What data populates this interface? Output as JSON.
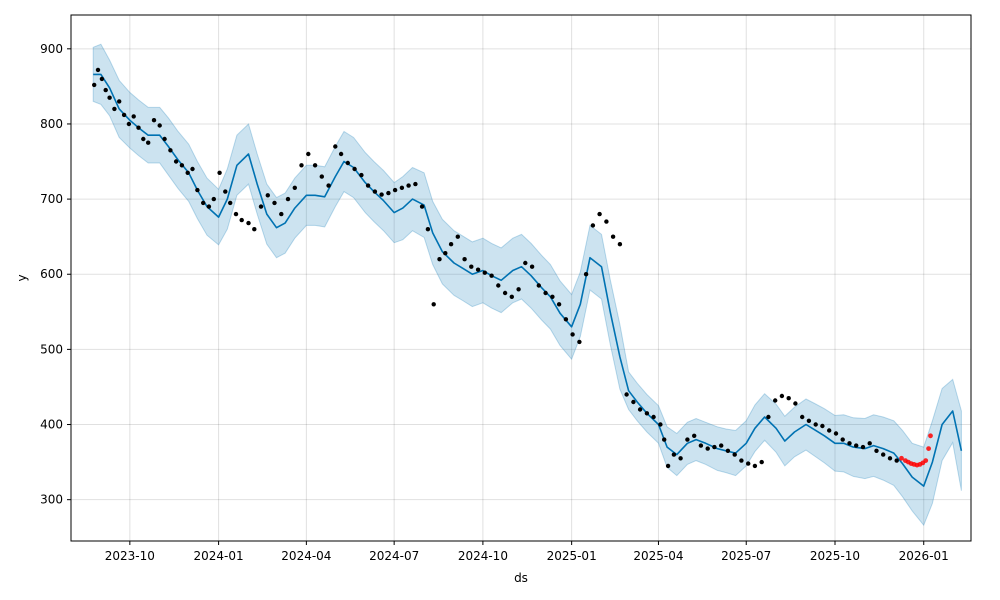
{
  "chart_data": {
    "type": "line",
    "title": "",
    "xlabel": "ds",
    "ylabel": "y",
    "x_range": [
      "2023-08-01",
      "2026-02-19"
    ],
    "ylim": [
      245,
      945
    ],
    "grid": true,
    "x_ticks": [
      "2023-10-01",
      "2024-01-01",
      "2024-04-01",
      "2024-07-01",
      "2024-10-01",
      "2025-01-01",
      "2025-04-01",
      "2025-07-01",
      "2025-10-01",
      "2026-01-01"
    ],
    "x_tick_labels": [
      "2023-10",
      "2024-01",
      "2024-04",
      "2024-07",
      "2024-10",
      "2025-01",
      "2025-04",
      "2025-07",
      "2025-10",
      "2026-01"
    ],
    "y_ticks": [
      300,
      400,
      500,
      600,
      700,
      800,
      900
    ],
    "colors": {
      "forecast_line": "#0072b2",
      "interval_fill": "#0072b2",
      "actual_points": "#000000",
      "highlight_points": "#ff0000"
    },
    "series": [
      {
        "role": "forecast",
        "x": [
          "2023-08-24",
          "2023-09-01",
          "2023-09-10",
          "2023-09-20",
          "2023-10-01",
          "2023-10-10",
          "2023-10-20",
          "2023-11-01",
          "2023-11-10",
          "2023-11-20",
          "2023-12-01",
          "2023-12-10",
          "2023-12-20",
          "2024-01-01",
          "2024-01-10",
          "2024-01-20",
          "2024-02-01",
          "2024-02-10",
          "2024-02-20",
          "2024-03-01",
          "2024-03-10",
          "2024-03-20",
          "2024-04-01",
          "2024-04-10",
          "2024-04-20",
          "2024-05-01",
          "2024-05-10",
          "2024-05-20",
          "2024-06-01",
          "2024-06-10",
          "2024-06-20",
          "2024-07-01",
          "2024-07-10",
          "2024-07-20",
          "2024-08-01",
          "2024-08-10",
          "2024-08-20",
          "2024-09-01",
          "2024-09-10",
          "2024-09-20",
          "2024-10-01",
          "2024-10-10",
          "2024-10-20",
          "2024-11-01",
          "2024-11-10",
          "2024-11-20",
          "2024-12-01",
          "2024-12-10",
          "2024-12-20",
          "2025-01-01",
          "2025-01-10",
          "2025-01-20",
          "2025-02-01",
          "2025-02-10",
          "2025-02-20",
          "2025-03-01",
          "2025-03-10",
          "2025-03-20",
          "2025-04-01",
          "2025-04-10",
          "2025-04-20",
          "2025-05-01",
          "2025-05-10",
          "2025-05-20",
          "2025-06-01",
          "2025-06-10",
          "2025-06-20",
          "2025-07-01",
          "2025-07-10",
          "2025-07-20",
          "2025-08-01",
          "2025-08-10",
          "2025-08-20",
          "2025-09-01",
          "2025-09-10",
          "2025-09-20",
          "2025-10-01",
          "2025-10-10",
          "2025-10-20",
          "2025-11-01",
          "2025-11-10",
          "2025-11-20",
          "2025-12-01",
          "2025-12-10",
          "2025-12-20",
          "2026-01-01",
          "2026-01-10",
          "2026-01-20",
          "2026-01-31",
          "2026-02-09"
        ],
        "y": [
          866,
          866,
          848,
          820,
          805,
          795,
          785,
          785,
          770,
          752,
          735,
          712,
          690,
          676,
          700,
          745,
          760,
          720,
          680,
          662,
          668,
          688,
          705,
          705,
          703,
          730,
          750,
          742,
          722,
          710,
          698,
          682,
          688,
          700,
          692,
          655,
          630,
          615,
          608,
          600,
          605,
          598,
          592,
          605,
          610,
          598,
          582,
          570,
          548,
          530,
          560,
          622,
          610,
          550,
          490,
          445,
          430,
          415,
          400,
          370,
          360,
          375,
          380,
          375,
          368,
          365,
          362,
          375,
          395,
          410,
          395,
          378,
          390,
          400,
          393,
          385,
          375,
          375,
          370,
          368,
          372,
          368,
          362,
          348,
          330,
          318,
          350,
          400,
          418,
          365
        ]
      },
      {
        "role": "interval_upper",
        "x": [
          "2023-08-24",
          "2023-09-01",
          "2023-09-10",
          "2023-09-20",
          "2023-10-01",
          "2023-10-10",
          "2023-10-20",
          "2023-11-01",
          "2023-11-10",
          "2023-11-20",
          "2023-12-01",
          "2023-12-10",
          "2023-12-20",
          "2024-01-01",
          "2024-01-10",
          "2024-01-20",
          "2024-02-01",
          "2024-02-10",
          "2024-02-20",
          "2024-03-01",
          "2024-03-10",
          "2024-03-20",
          "2024-04-01",
          "2024-04-10",
          "2024-04-20",
          "2024-05-01",
          "2024-05-10",
          "2024-05-20",
          "2024-06-01",
          "2024-06-10",
          "2024-06-20",
          "2024-07-01",
          "2024-07-10",
          "2024-07-20",
          "2024-08-01",
          "2024-08-10",
          "2024-08-20",
          "2024-09-01",
          "2024-09-10",
          "2024-09-20",
          "2024-10-01",
          "2024-10-10",
          "2024-10-20",
          "2024-11-01",
          "2024-11-10",
          "2024-11-20",
          "2024-12-01",
          "2024-12-10",
          "2024-12-20",
          "2025-01-01",
          "2025-01-10",
          "2025-01-20",
          "2025-02-01",
          "2025-02-10",
          "2025-02-20",
          "2025-03-01",
          "2025-03-10",
          "2025-03-20",
          "2025-04-01",
          "2025-04-10",
          "2025-04-20",
          "2025-05-01",
          "2025-05-10",
          "2025-05-20",
          "2025-06-01",
          "2025-06-10",
          "2025-06-20",
          "2025-07-01",
          "2025-07-10",
          "2025-07-20",
          "2025-08-01",
          "2025-08-10",
          "2025-08-20",
          "2025-09-01",
          "2025-09-10",
          "2025-09-20",
          "2025-10-01",
          "2025-10-10",
          "2025-10-20",
          "2025-11-01",
          "2025-11-10",
          "2025-11-20",
          "2025-12-01",
          "2025-12-10",
          "2025-12-20",
          "2026-01-01",
          "2026-01-10",
          "2026-01-20",
          "2026-01-31",
          "2026-02-09"
        ],
        "y": [
          902,
          906,
          885,
          858,
          842,
          832,
          822,
          822,
          808,
          790,
          773,
          750,
          728,
          713,
          740,
          785,
          800,
          760,
          720,
          702,
          708,
          728,
          745,
          745,
          743,
          770,
          790,
          782,
          762,
          750,
          738,
          722,
          730,
          742,
          735,
          697,
          673,
          658,
          651,
          643,
          648,
          641,
          635,
          648,
          653,
          641,
          625,
          613,
          591,
          573,
          603,
          665,
          653,
          593,
          533,
          470,
          455,
          440,
          425,
          397,
          388,
          403,
          408,
          403,
          397,
          394,
          392,
          405,
          426,
          441,
          427,
          411,
          423,
          434,
          428,
          421,
          412,
          413,
          409,
          408,
          413,
          410,
          405,
          392,
          375,
          370,
          405,
          448,
          460,
          418
        ]
      },
      {
        "role": "interval_lower",
        "x": [
          "2023-08-24",
          "2023-09-01",
          "2023-09-10",
          "2023-09-20",
          "2023-10-01",
          "2023-10-10",
          "2023-10-20",
          "2023-11-01",
          "2023-11-10",
          "2023-11-20",
          "2023-12-01",
          "2023-12-10",
          "2023-12-20",
          "2024-01-01",
          "2024-01-10",
          "2024-01-20",
          "2024-02-01",
          "2024-02-10",
          "2024-02-20",
          "2024-03-01",
          "2024-03-10",
          "2024-03-20",
          "2024-04-01",
          "2024-04-10",
          "2024-04-20",
          "2024-05-01",
          "2024-05-10",
          "2024-05-20",
          "2024-06-01",
          "2024-06-10",
          "2024-06-20",
          "2024-07-01",
          "2024-07-10",
          "2024-07-20",
          "2024-08-01",
          "2024-08-10",
          "2024-08-20",
          "2024-09-01",
          "2024-09-10",
          "2024-09-20",
          "2024-10-01",
          "2024-10-10",
          "2024-10-20",
          "2024-11-01",
          "2024-11-10",
          "2024-11-20",
          "2024-12-01",
          "2024-12-10",
          "2024-12-20",
          "2025-01-01",
          "2025-01-10",
          "2025-01-20",
          "2025-02-01",
          "2025-02-10",
          "2025-02-20",
          "2025-03-01",
          "2025-03-10",
          "2025-03-20",
          "2025-04-01",
          "2025-04-10",
          "2025-04-20",
          "2025-05-01",
          "2025-05-10",
          "2025-05-20",
          "2025-06-01",
          "2025-06-10",
          "2025-06-20",
          "2025-07-01",
          "2025-07-10",
          "2025-07-20",
          "2025-08-01",
          "2025-08-10",
          "2025-08-20",
          "2025-09-01",
          "2025-09-10",
          "2025-09-20",
          "2025-10-01",
          "2025-10-10",
          "2025-10-20",
          "2025-11-01",
          "2025-11-10",
          "2025-11-20",
          "2025-12-01",
          "2025-12-10",
          "2025-12-20",
          "2026-01-01",
          "2026-01-10",
          "2026-01-20",
          "2026-01-31",
          "2026-02-09"
        ],
        "y": [
          830,
          826,
          811,
          782,
          768,
          758,
          748,
          748,
          732,
          714,
          697,
          674,
          652,
          639,
          660,
          705,
          720,
          680,
          640,
          622,
          628,
          648,
          665,
          665,
          663,
          690,
          710,
          702,
          682,
          670,
          658,
          642,
          646,
          658,
          649,
          613,
          587,
          572,
          565,
          557,
          562,
          555,
          549,
          562,
          567,
          555,
          539,
          527,
          505,
          487,
          517,
          579,
          567,
          507,
          447,
          420,
          405,
          390,
          375,
          343,
          332,
          347,
          352,
          347,
          339,
          336,
          332,
          345,
          364,
          379,
          363,
          345,
          357,
          366,
          358,
          349,
          338,
          337,
          331,
          328,
          331,
          326,
          319,
          304,
          285,
          266,
          295,
          352,
          376,
          312
        ]
      },
      {
        "role": "actual",
        "x": [
          "2023-08-25",
          "2023-08-29",
          "2023-09-02",
          "2023-09-06",
          "2023-09-10",
          "2023-09-15",
          "2023-09-20",
          "2023-09-25",
          "2023-09-30",
          "2023-10-05",
          "2023-10-10",
          "2023-10-15",
          "2023-10-20",
          "2023-10-26",
          "2023-11-01",
          "2023-11-06",
          "2023-11-12",
          "2023-11-18",
          "2023-11-24",
          "2023-11-30",
          "2023-12-05",
          "2023-12-10",
          "2023-12-16",
          "2023-12-22",
          "2023-12-27",
          "2024-01-02",
          "2024-01-08",
          "2024-01-13",
          "2024-01-19",
          "2024-01-25",
          "2024-02-01",
          "2024-02-07",
          "2024-02-14",
          "2024-02-21",
          "2024-02-28",
          "2024-03-06",
          "2024-03-13",
          "2024-03-20",
          "2024-03-27",
          "2024-04-03",
          "2024-04-10",
          "2024-04-17",
          "2024-04-24",
          "2024-05-01",
          "2024-05-07",
          "2024-05-14",
          "2024-05-21",
          "2024-05-28",
          "2024-06-04",
          "2024-06-11",
          "2024-06-18",
          "2024-06-25",
          "2024-07-02",
          "2024-07-09",
          "2024-07-16",
          "2024-07-23",
          "2024-07-30",
          "2024-08-05",
          "2024-08-11",
          "2024-08-17",
          "2024-08-23",
          "2024-08-29",
          "2024-09-05",
          "2024-09-12",
          "2024-09-19",
          "2024-09-26",
          "2024-10-03",
          "2024-10-10",
          "2024-10-17",
          "2024-10-24",
          "2024-10-31",
          "2024-11-07",
          "2024-11-14",
          "2024-11-21",
          "2024-11-28",
          "2024-12-05",
          "2024-12-12",
          "2024-12-19",
          "2024-12-26",
          "2025-01-02",
          "2025-01-09",
          "2025-01-16",
          "2025-01-23",
          "2025-01-30",
          "2025-02-06",
          "2025-02-13",
          "2025-02-20",
          "2025-02-27",
          "2025-03-06",
          "2025-03-13",
          "2025-03-20",
          "2025-03-27",
          "2025-04-03",
          "2025-04-07",
          "2025-04-11",
          "2025-04-17",
          "2025-04-24",
          "2025-05-01",
          "2025-05-08",
          "2025-05-15",
          "2025-05-22",
          "2025-05-29",
          "2025-06-05",
          "2025-06-12",
          "2025-06-19",
          "2025-06-26",
          "2025-07-03",
          "2025-07-10",
          "2025-07-17",
          "2025-07-24",
          "2025-07-31",
          "2025-08-07",
          "2025-08-14",
          "2025-08-21",
          "2025-08-28",
          "2025-09-04",
          "2025-09-11",
          "2025-09-18",
          "2025-09-25",
          "2025-10-02",
          "2025-10-09",
          "2025-10-16",
          "2025-10-23",
          "2025-10-30",
          "2025-11-06",
          "2025-11-13",
          "2025-11-20",
          "2025-11-27",
          "2025-12-04"
        ],
        "y": [
          852,
          872,
          860,
          845,
          835,
          820,
          830,
          812,
          800,
          810,
          795,
          780,
          775,
          805,
          798,
          780,
          765,
          750,
          745,
          735,
          740,
          712,
          695,
          690,
          700,
          735,
          710,
          695,
          680,
          672,
          668,
          660,
          690,
          705,
          695,
          680,
          700,
          715,
          745,
          760,
          745,
          730,
          718,
          770,
          760,
          748,
          740,
          732,
          718,
          710,
          706,
          708,
          712,
          715,
          718,
          720,
          690,
          660,
          560,
          620,
          628,
          640,
          650,
          620,
          610,
          606,
          602,
          598,
          585,
          575,
          570,
          580,
          615,
          610,
          585,
          575,
          570,
          560,
          540,
          520,
          510,
          600,
          665,
          680,
          670,
          650,
          640,
          440,
          430,
          420,
          415,
          410,
          400,
          380,
          345,
          360,
          355,
          380,
          385,
          372,
          368,
          370,
          372,
          365,
          360,
          352,
          348,
          345,
          350,
          410,
          432,
          438,
          435,
          428,
          410,
          405,
          400,
          398,
          392,
          388,
          380,
          375,
          372,
          370,
          375,
          365,
          360,
          355,
          352
        ]
      },
      {
        "role": "highlight",
        "x": [
          "2025-12-09",
          "2025-12-13",
          "2025-12-16",
          "2025-12-19",
          "2025-12-22",
          "2025-12-25",
          "2025-12-28",
          "2025-12-31",
          "2026-01-03",
          "2026-01-06",
          "2026-01-08"
        ],
        "y": [
          355,
          352,
          350,
          348,
          347,
          346,
          347,
          349,
          352,
          368,
          385
        ]
      }
    ]
  }
}
